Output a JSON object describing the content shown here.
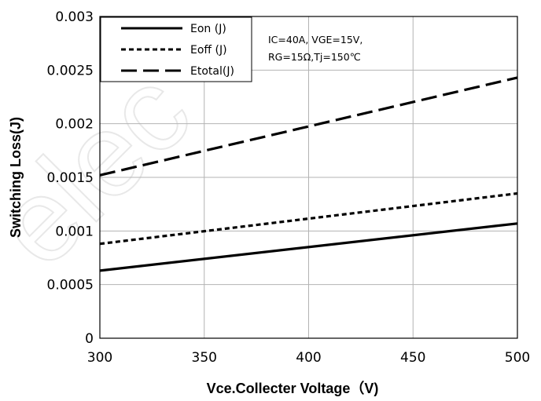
{
  "chart_data": {
    "type": "line",
    "title": "",
    "xlabel": "Vce.Collecter Voltage（V)",
    "ylabel": "Switching Loss(J)",
    "xlim": [
      300,
      500
    ],
    "ylim": [
      0,
      0.003
    ],
    "x_ticks": [
      "300",
      "350",
      "400",
      "450",
      "500"
    ],
    "y_ticks": [
      "0",
      "0.0005",
      "0.001",
      "0.0015",
      "0.002",
      "0.0025",
      "0.003"
    ],
    "grid": true,
    "legend_position": "top-left",
    "series": [
      {
        "name": "Eon (J)",
        "style": "solid",
        "color": "#000000",
        "x": [
          300,
          500
        ],
        "y": [
          0.00063,
          0.00107
        ]
      },
      {
        "name": "Eoff (J)",
        "style": "dotted",
        "color": "#000000",
        "x": [
          300,
          500
        ],
        "y": [
          0.00088,
          0.00135
        ]
      },
      {
        "name": "Etotal(J)",
        "style": "dashed",
        "color": "#000000",
        "x": [
          300,
          500
        ],
        "y": [
          0.00152,
          0.00243
        ]
      }
    ],
    "annotation": [
      "IC=40A, VGE=15V,",
      "RG=15Ω,Tj=150℃"
    ]
  }
}
